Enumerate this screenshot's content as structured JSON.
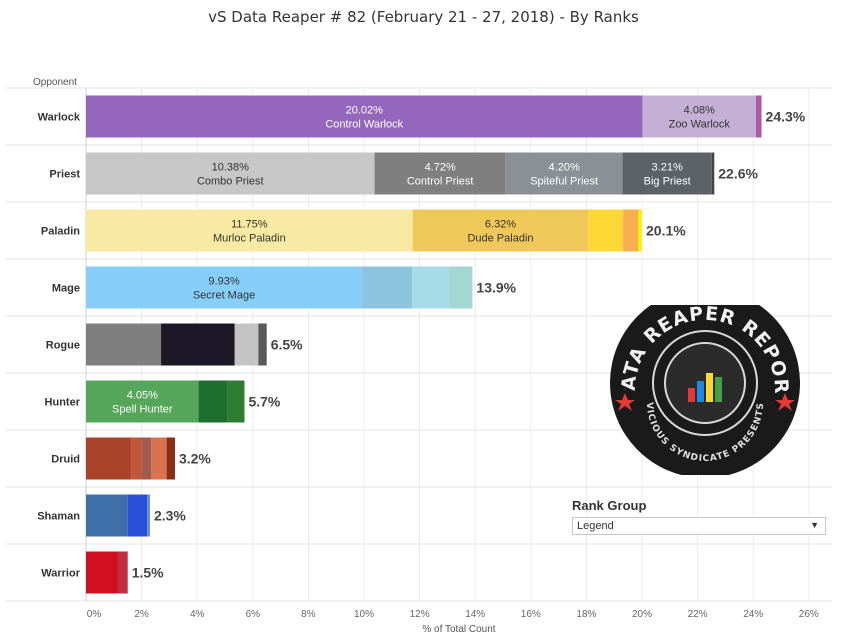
{
  "title": "vS Data Reaper #  82 (February 21 - 27, 2018) - By Ranks",
  "rank_group": {
    "title": "Rank Group",
    "selected": "Legend"
  },
  "logo": {
    "text_top": "DATA REAPER REPORT",
    "text_bottom": "VICIOUS SYNDICATE PRESENTS"
  },
  "chart_data": {
    "type": "bar",
    "orientation": "horizontal",
    "stacked": true,
    "ylabel": "Opponent",
    "xlabel": "% of Total Count",
    "xlim": [
      0,
      26
    ],
    "xticks": [
      "0%",
      "2%",
      "4%",
      "6%",
      "8%",
      "10%",
      "12%",
      "14%",
      "16%",
      "18%",
      "20%",
      "22%",
      "24%",
      "26%"
    ],
    "grid": true,
    "categories": [
      {
        "name": "Warlock",
        "total": "24.3%",
        "segments": [
          {
            "value": 20.02,
            "label": "20.02%",
            "archetype": "Control Warlock",
            "color": "#9467bd"
          },
          {
            "value": 4.08,
            "label": "4.08%",
            "archetype": "Zoo Warlock",
            "color": "#c5b0d5"
          },
          {
            "value": 0.2,
            "color": "#a95aa1"
          }
        ]
      },
      {
        "name": "Priest",
        "total": "22.6%",
        "segments": [
          {
            "value": 10.38,
            "label": "10.38%",
            "archetype": "Combo Priest",
            "color": "#c7c7c7"
          },
          {
            "value": 4.72,
            "label": "4.72%",
            "archetype": "Control Priest",
            "color": "#7f7f7f"
          },
          {
            "value": 4.2,
            "label": "4.20%",
            "archetype": "Spiteful Priest",
            "color": "#8a9095"
          },
          {
            "value": 3.21,
            "label": "3.21%",
            "archetype": "Big Priest",
            "color": "#5c6268"
          },
          {
            "value": 0.09,
            "color": "#444444"
          }
        ]
      },
      {
        "name": "Paladin",
        "total": "20.1%",
        "segments": [
          {
            "value": 11.75,
            "label": "11.75%",
            "archetype": "Murloc Paladin",
            "color": "#f8eaa2"
          },
          {
            "value": 6.32,
            "label": "6.32%",
            "archetype": "Dude Paladin",
            "color": "#f0c85a"
          },
          {
            "value": 1.25,
            "color": "#fdd835"
          },
          {
            "value": 0.55,
            "color": "#f7ae4f"
          },
          {
            "value": 0.13,
            "color": "#fff200"
          }
        ]
      },
      {
        "name": "Mage",
        "total": "13.9%",
        "segments": [
          {
            "value": 9.93,
            "label": "9.93%",
            "archetype": "Secret Mage",
            "color": "#87cefa"
          },
          {
            "value": 1.8,
            "color": "#8ec5de"
          },
          {
            "value": 1.35,
            "color": "#a6dbe8"
          },
          {
            "value": 0.82,
            "color": "#a2d7d3"
          }
        ]
      },
      {
        "name": "Rogue",
        "total": "6.5%",
        "segments": [
          {
            "value": 2.7,
            "color": "#7f7f7f"
          },
          {
            "value": 2.65,
            "color": "#1b1727"
          },
          {
            "value": 0.85,
            "color": "#c4c4c4"
          },
          {
            "value": 0.3,
            "color": "#595959"
          }
        ]
      },
      {
        "name": "Hunter",
        "total": "5.7%",
        "segments": [
          {
            "value": 4.05,
            "label": "4.05%",
            "archetype": "Spell Hunter",
            "color": "#55a55a"
          },
          {
            "value": 1.05,
            "color": "#1e6e2f"
          },
          {
            "value": 0.6,
            "color": "#2e7d32"
          }
        ]
      },
      {
        "name": "Druid",
        "total": "3.2%",
        "segments": [
          {
            "value": 1.6,
            "color": "#a8432a"
          },
          {
            "value": 0.4,
            "color": "#c0573a"
          },
          {
            "value": 0.35,
            "color": "#a05a4e"
          },
          {
            "value": 0.55,
            "color": "#d9734f"
          },
          {
            "value": 0.3,
            "color": "#8b2e16"
          }
        ]
      },
      {
        "name": "Shaman",
        "total": "2.3%",
        "segments": [
          {
            "value": 1.5,
            "color": "#3f6fa8"
          },
          {
            "value": 0.7,
            "color": "#2a4fd8"
          },
          {
            "value": 0.1,
            "color": "#5b8dd6"
          }
        ]
      },
      {
        "name": "Warrior",
        "total": "1.5%",
        "segments": [
          {
            "value": 1.15,
            "color": "#d0101f"
          },
          {
            "value": 0.35,
            "color": "#c22d40"
          }
        ]
      }
    ]
  }
}
